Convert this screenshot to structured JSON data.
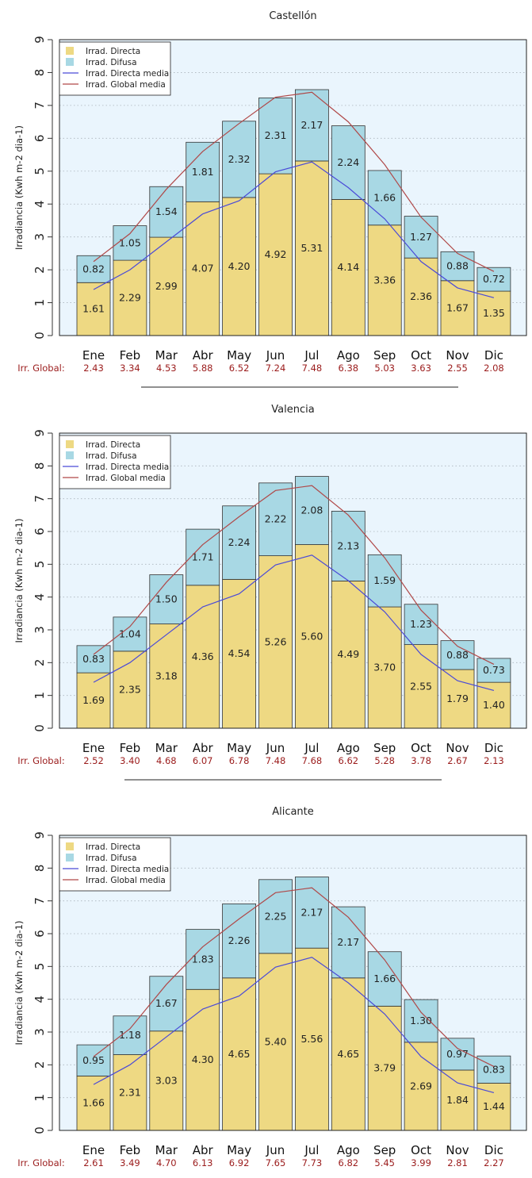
{
  "colors": {
    "directa": "#eed983",
    "difusa": "#a8d8e4",
    "directa_media": "#4a4ad8",
    "global_media": "#b04848",
    "plot_bg": "#eaf5fd",
    "irr_text": "#9b1c1c"
  },
  "ylabel": "Irradiancia (Kwh m-2 dia-1)",
  "irr_global_label": "Irr. Global:",
  "legend": {
    "directa": "Irrad. Directa",
    "difusa": "Irrad. Difusa",
    "directa_media": "Irrad. Directa media",
    "global_media": "Irrad. Global media"
  },
  "chart_data": [
    {
      "type": "bar",
      "title": "Castellón",
      "categories": [
        "Ene",
        "Feb",
        "Mar",
        "Abr",
        "May",
        "Jun",
        "Jul",
        "Ago",
        "Sep",
        "Oct",
        "Nov",
        "Dic"
      ],
      "ylabel": "Irradiancia (Kwh m-2 dia-1)",
      "ylim": [
        0,
        9
      ],
      "yticks": [
        "0",
        "1",
        "2",
        "3",
        "4",
        "5",
        "6",
        "7",
        "8",
        "9"
      ],
      "stacked": true,
      "series": [
        {
          "name": "Irrad. Directa",
          "values": [
            1.61,
            2.29,
            2.99,
            4.07,
            4.2,
            4.92,
            5.31,
            4.14,
            3.36,
            2.36,
            1.67,
            1.35
          ]
        },
        {
          "name": "Irrad. Difusa",
          "values": [
            0.82,
            1.05,
            1.54,
            1.81,
            2.32,
            2.31,
            2.17,
            2.24,
            1.66,
            1.27,
            0.88,
            0.72
          ]
        },
        {
          "name": "Irrad. Directa media",
          "type": "line",
          "values": [
            1.4,
            2.0,
            2.85,
            3.7,
            4.1,
            4.98,
            5.28,
            4.5,
            3.55,
            2.25,
            1.45,
            1.15
          ]
        },
        {
          "name": "Irrad. Global media",
          "type": "line",
          "values": [
            2.25,
            3.1,
            4.45,
            5.6,
            6.45,
            7.25,
            7.4,
            6.5,
            5.2,
            3.6,
            2.5,
            1.95
          ]
        }
      ],
      "irr_global": [
        "2.43",
        "3.34",
        "4.53",
        "5.88",
        "6.52",
        "7.24",
        "7.48",
        "6.38",
        "5.03",
        "3.63",
        "2.55",
        "2.08"
      ],
      "legend_position": "top-left"
    },
    {
      "type": "bar",
      "title": "Valencia",
      "categories": [
        "Ene",
        "Feb",
        "Mar",
        "Abr",
        "May",
        "Jun",
        "Jul",
        "Ago",
        "Sep",
        "Oct",
        "Nov",
        "Dic"
      ],
      "ylabel": "Irradiancia (Kwh m-2 dia-1)",
      "ylim": [
        0,
        9
      ],
      "yticks": [
        "0",
        "1",
        "2",
        "3",
        "4",
        "5",
        "6",
        "7",
        "8",
        "9"
      ],
      "stacked": true,
      "series": [
        {
          "name": "Irrad. Directa",
          "values": [
            1.69,
            2.35,
            3.18,
            4.36,
            4.54,
            5.26,
            5.6,
            4.49,
            3.7,
            2.55,
            1.79,
            1.4
          ]
        },
        {
          "name": "Irrad. Difusa",
          "values": [
            0.83,
            1.04,
            1.5,
            1.71,
            2.24,
            2.22,
            2.08,
            2.13,
            1.59,
            1.23,
            0.88,
            0.73
          ]
        },
        {
          "name": "Irrad. Directa media",
          "type": "line",
          "values": [
            1.4,
            2.0,
            2.85,
            3.7,
            4.1,
            4.98,
            5.28,
            4.5,
            3.55,
            2.25,
            1.45,
            1.15
          ]
        },
        {
          "name": "Irrad. Global media",
          "type": "line",
          "values": [
            2.25,
            3.1,
            4.45,
            5.6,
            6.45,
            7.25,
            7.4,
            6.5,
            5.2,
            3.6,
            2.5,
            1.95
          ]
        }
      ],
      "irr_global": [
        "2.52",
        "3.40",
        "4.68",
        "6.07",
        "6.78",
        "7.48",
        "7.68",
        "6.62",
        "5.28",
        "3.78",
        "2.67",
        "2.13"
      ],
      "legend_position": "top-left"
    },
    {
      "type": "bar",
      "title": "Alicante",
      "categories": [
        "Ene",
        "Feb",
        "Mar",
        "Abr",
        "May",
        "Jun",
        "Jul",
        "Ago",
        "Sep",
        "Oct",
        "Nov",
        "Dic"
      ],
      "ylabel": "Irradiancia (Kwh m-2 dia-1)",
      "ylim": [
        0,
        9
      ],
      "yticks": [
        "0",
        "1",
        "2",
        "3",
        "4",
        "5",
        "6",
        "7",
        "8",
        "9"
      ],
      "stacked": true,
      "series": [
        {
          "name": "Irrad. Directa",
          "values": [
            1.66,
            2.31,
            3.03,
            4.3,
            4.65,
            5.4,
            5.56,
            4.65,
            3.79,
            2.69,
            1.84,
            1.44
          ]
        },
        {
          "name": "Irrad. Difusa",
          "values": [
            0.95,
            1.18,
            1.67,
            1.83,
            2.26,
            2.25,
            2.17,
            2.17,
            1.66,
            1.3,
            0.97,
            0.83
          ]
        },
        {
          "name": "Irrad. Directa media",
          "type": "line",
          "values": [
            1.4,
            2.0,
            2.85,
            3.7,
            4.1,
            4.98,
            5.28,
            4.5,
            3.55,
            2.25,
            1.45,
            1.15
          ]
        },
        {
          "name": "Irrad. Global media",
          "type": "line",
          "values": [
            2.25,
            3.1,
            4.45,
            5.6,
            6.45,
            7.25,
            7.4,
            6.5,
            5.2,
            3.6,
            2.5,
            1.95
          ]
        }
      ],
      "irr_global": [
        "2.61",
        "3.49",
        "4.70",
        "6.13",
        "6.92",
        "7.65",
        "7.73",
        "6.82",
        "5.45",
        "3.99",
        "2.81",
        "2.27"
      ],
      "legend_position": "top-left"
    }
  ]
}
